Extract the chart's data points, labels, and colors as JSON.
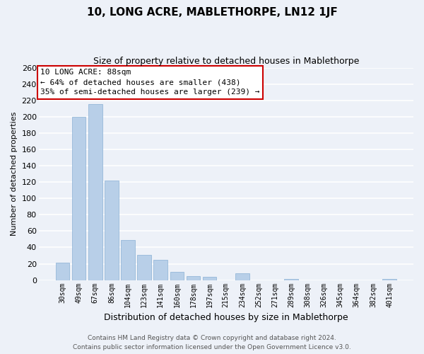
{
  "title": "10, LONG ACRE, MABLETHORPE, LN12 1JF",
  "subtitle": "Size of property relative to detached houses in Mablethorpe",
  "xlabel": "Distribution of detached houses by size in Mablethorpe",
  "ylabel": "Number of detached properties",
  "footer_line1": "Contains HM Land Registry data © Crown copyright and database right 2024.",
  "footer_line2": "Contains public sector information licensed under the Open Government Licence v3.0.",
  "bar_labels": [
    "30sqm",
    "49sqm",
    "67sqm",
    "86sqm",
    "104sqm",
    "123sqm",
    "141sqm",
    "160sqm",
    "178sqm",
    "197sqm",
    "215sqm",
    "234sqm",
    "252sqm",
    "271sqm",
    "289sqm",
    "308sqm",
    "326sqm",
    "345sqm",
    "364sqm",
    "382sqm",
    "401sqm"
  ],
  "bar_values": [
    21,
    200,
    215,
    122,
    49,
    31,
    25,
    10,
    5,
    4,
    0,
    8,
    0,
    0,
    1,
    0,
    0,
    0,
    0,
    0,
    1
  ],
  "bar_color": "#b8cfe8",
  "bar_edge_color": "#8ab0d4",
  "ylim": [
    0,
    260
  ],
  "yticks": [
    0,
    20,
    40,
    60,
    80,
    100,
    120,
    140,
    160,
    180,
    200,
    220,
    240,
    260
  ],
  "annotation_title": "10 LONG ACRE: 88sqm",
  "annotation_line1": "← 64% of detached houses are smaller (438)",
  "annotation_line2": "35% of semi-detached houses are larger (239) →",
  "annotation_box_facecolor": "#ffffff",
  "annotation_box_edgecolor": "#cc0000",
  "bg_color": "#edf1f8",
  "grid_color": "#ffffff",
  "title_fontsize": 11,
  "subtitle_fontsize": 9,
  "ylabel_fontsize": 8,
  "xlabel_fontsize": 9,
  "tick_fontsize": 8,
  "xtick_fontsize": 7,
  "annotation_fontsize": 8,
  "footer_fontsize": 6.5
}
